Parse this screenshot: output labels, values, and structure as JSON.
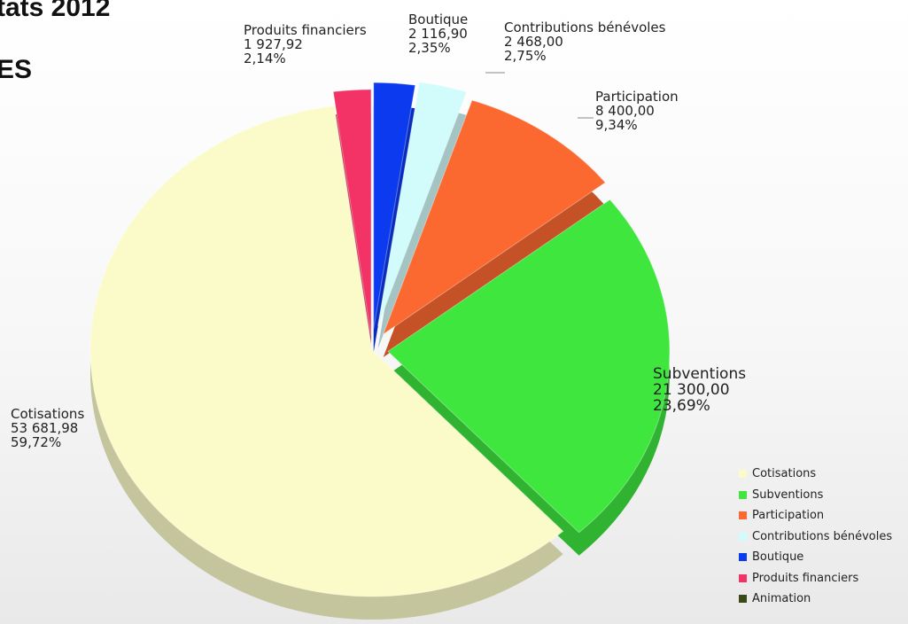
{
  "header": {
    "title": "tats 2012",
    "subtitle": "ES"
  },
  "chart_data": {
    "type": "pie",
    "style": "3d-exploded",
    "legend_position": "bottom-right",
    "slices": [
      {
        "label": "Cotisations",
        "value": "53 681,98",
        "percent": "59,72%",
        "numeric": 53681.98,
        "color": "#fbfbc9"
      },
      {
        "label": "Subventions",
        "value": "21 300,00",
        "percent": "23,69%",
        "numeric": 21300.0,
        "color": "#3ee63e"
      },
      {
        "label": "Participation",
        "value": "8 400,00",
        "percent": "9,34%",
        "numeric": 8400.0,
        "color": "#fb6931"
      },
      {
        "label": "Contributions bénévoles",
        "value": "2 468,00",
        "percent": "2,75%",
        "numeric": 2468.0,
        "color": "#d2fbfb"
      },
      {
        "label": "Boutique",
        "value": "2 116,90",
        "percent": "2,35%",
        "numeric": 2116.9,
        "color": "#0c3aee"
      },
      {
        "label": "Produits financiers",
        "value": "1 927,92",
        "percent": "2,14%",
        "numeric": 1927.92,
        "color": "#f33365"
      }
    ],
    "legend": [
      {
        "label": "Cotisations",
        "color": "#fbfbc9"
      },
      {
        "label": "Subventions",
        "color": "#3ee63e"
      },
      {
        "label": "Participation",
        "color": "#fb6931"
      },
      {
        "label": "Contributions bénévoles",
        "color": "#d2fbfb"
      },
      {
        "label": "Boutique",
        "color": "#0c3aee"
      },
      {
        "label": "Produits financiers",
        "color": "#f33365"
      },
      {
        "label": "Animation",
        "color": "#3a4a14"
      }
    ]
  }
}
